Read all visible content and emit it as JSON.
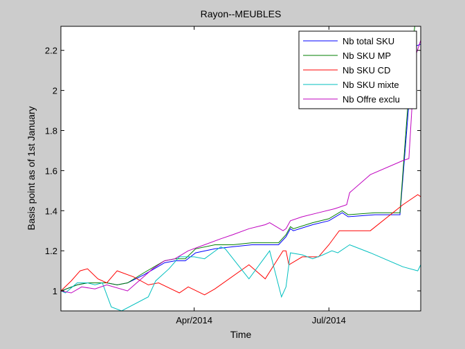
{
  "chart_data": {
    "type": "line",
    "title": "Rayon--MEUBLES",
    "xlabel": "Time",
    "ylabel": "Basis point as of 1st January",
    "xlim": [
      "2014-01-01",
      "2014-09-01"
    ],
    "ylim": [
      0.9,
      2.32
    ],
    "xticks": [
      {
        "date": "2014-04-01",
        "label": "Apr/2014"
      },
      {
        "date": "2014-07-01",
        "label": "Jul/2014"
      }
    ],
    "yticks": [
      {
        "value": 1.0,
        "label": "1"
      },
      {
        "value": 1.2,
        "label": "1.2"
      },
      {
        "value": 1.4,
        "label": "1.4"
      },
      {
        "value": 1.6,
        "label": "1.6"
      },
      {
        "value": 1.8,
        "label": "1.8"
      },
      {
        "value": 2.0,
        "label": "2"
      },
      {
        "value": 2.2,
        "label": "2.2"
      }
    ],
    "grid": false,
    "legend_position": "top-right",
    "series": [
      {
        "name": "Nb total SKU",
        "color": "#0000ff",
        "points": [
          [
            "2014-01-01",
            1.0
          ],
          [
            "2014-01-12",
            1.03
          ],
          [
            "2014-01-19",
            1.04
          ],
          [
            "2014-02-01",
            1.04
          ],
          [
            "2014-02-08",
            1.03
          ],
          [
            "2014-02-15",
            1.04
          ],
          [
            "2014-02-26",
            1.08
          ],
          [
            "2014-03-12",
            1.14
          ],
          [
            "2014-03-19",
            1.15
          ],
          [
            "2014-03-26",
            1.15
          ],
          [
            "2014-04-02",
            1.19
          ],
          [
            "2014-04-15",
            1.21
          ],
          [
            "2014-04-27",
            1.22
          ],
          [
            "2014-05-10",
            1.23
          ],
          [
            "2014-05-22",
            1.23
          ],
          [
            "2014-05-28",
            1.23
          ],
          [
            "2014-06-02",
            1.27
          ],
          [
            "2014-06-05",
            1.31
          ],
          [
            "2014-06-07",
            1.3
          ],
          [
            "2014-06-20",
            1.33
          ],
          [
            "2014-07-01",
            1.35
          ],
          [
            "2014-07-10",
            1.39
          ],
          [
            "2014-07-14",
            1.37
          ],
          [
            "2014-08-01",
            1.38
          ],
          [
            "2014-08-15",
            1.38
          ],
          [
            "2014-08-18",
            1.38
          ],
          [
            "2014-08-26",
            2.12
          ],
          [
            "2014-08-28",
            2.22
          ],
          [
            "2014-09-01",
            2.23
          ]
        ]
      },
      {
        "name": "Nb SKU MP",
        "color": "#007f00",
        "points": [
          [
            "2014-01-01",
            1.0
          ],
          [
            "2014-01-12",
            1.03
          ],
          [
            "2014-01-19",
            1.04
          ],
          [
            "2014-02-01",
            1.04
          ],
          [
            "2014-02-08",
            1.03
          ],
          [
            "2014-02-15",
            1.04
          ],
          [
            "2014-02-26",
            1.09
          ],
          [
            "2014-03-12",
            1.15
          ],
          [
            "2014-03-19",
            1.16
          ],
          [
            "2014-03-26",
            1.16
          ],
          [
            "2014-04-02",
            1.21
          ],
          [
            "2014-04-15",
            1.23
          ],
          [
            "2014-04-27",
            1.23
          ],
          [
            "2014-05-10",
            1.24
          ],
          [
            "2014-05-22",
            1.24
          ],
          [
            "2014-05-28",
            1.24
          ],
          [
            "2014-06-02",
            1.28
          ],
          [
            "2014-06-05",
            1.32
          ],
          [
            "2014-06-07",
            1.31
          ],
          [
            "2014-06-20",
            1.34
          ],
          [
            "2014-07-01",
            1.36
          ],
          [
            "2014-07-10",
            1.4
          ],
          [
            "2014-07-14",
            1.38
          ],
          [
            "2014-08-01",
            1.39
          ],
          [
            "2014-08-15",
            1.39
          ],
          [
            "2014-08-18",
            1.39
          ],
          [
            "2014-08-26",
            2.2
          ],
          [
            "2014-08-28",
            2.32
          ],
          [
            "2014-09-01",
            2.32
          ]
        ]
      },
      {
        "name": "Nb SKU CD",
        "color": "#ff0000",
        "points": [
          [
            "2014-01-01",
            1.0
          ],
          [
            "2014-01-08",
            1.05
          ],
          [
            "2014-01-14",
            1.1
          ],
          [
            "2014-01-19",
            1.11
          ],
          [
            "2014-01-26",
            1.06
          ],
          [
            "2014-02-01",
            1.04
          ],
          [
            "2014-02-08",
            1.1
          ],
          [
            "2014-02-19",
            1.07
          ],
          [
            "2014-02-29",
            1.03
          ],
          [
            "2014-03-08",
            1.04
          ],
          [
            "2014-03-22",
            0.99
          ],
          [
            "2014-03-28",
            1.02
          ],
          [
            "2014-04-08",
            0.98
          ],
          [
            "2014-04-15",
            1.01
          ],
          [
            "2014-05-08",
            1.13
          ],
          [
            "2014-05-19",
            1.06
          ],
          [
            "2014-05-31",
            1.2
          ],
          [
            "2014-06-02",
            1.2
          ],
          [
            "2014-06-04",
            1.13
          ],
          [
            "2014-06-13",
            1.17
          ],
          [
            "2014-06-24",
            1.17
          ],
          [
            "2014-07-01",
            1.23
          ],
          [
            "2014-07-08",
            1.3
          ],
          [
            "2014-07-22",
            1.3
          ],
          [
            "2014-07-29",
            1.3
          ],
          [
            "2014-08-20",
            1.43
          ],
          [
            "2014-08-30",
            1.48
          ],
          [
            "2014-09-01",
            1.47
          ]
        ]
      },
      {
        "name": "Nb SKU mixte",
        "color": "#00bfbf",
        "points": [
          [
            "2014-01-01",
            1.0
          ],
          [
            "2014-01-04",
            0.99
          ],
          [
            "2014-01-12",
            1.04
          ],
          [
            "2014-01-19",
            1.04
          ],
          [
            "2014-01-24",
            1.03
          ],
          [
            "2014-01-29",
            1.04
          ],
          [
            "2014-02-04",
            0.92
          ],
          [
            "2014-02-11",
            0.9
          ],
          [
            "2014-02-29",
            0.97
          ],
          [
            "2014-03-06",
            1.05
          ],
          [
            "2014-03-15",
            1.11
          ],
          [
            "2014-03-22",
            1.17
          ],
          [
            "2014-04-01",
            1.17
          ],
          [
            "2014-04-08",
            1.16
          ],
          [
            "2014-04-19",
            1.22
          ],
          [
            "2014-04-22",
            1.21
          ],
          [
            "2014-05-08",
            1.06
          ],
          [
            "2014-05-22",
            1.2
          ],
          [
            "2014-05-30",
            0.97
          ],
          [
            "2014-06-02",
            1.02
          ],
          [
            "2014-06-05",
            1.19
          ],
          [
            "2014-06-13",
            1.18
          ],
          [
            "2014-06-20",
            1.16
          ],
          [
            "2014-06-27",
            1.18
          ],
          [
            "2014-07-03",
            1.2
          ],
          [
            "2014-07-07",
            1.19
          ],
          [
            "2014-07-15",
            1.23
          ],
          [
            "2014-07-29",
            1.19
          ],
          [
            "2014-08-20",
            1.12
          ],
          [
            "2014-08-30",
            1.1
          ],
          [
            "2014-09-01",
            1.13
          ]
        ]
      },
      {
        "name": "Nb Offre exclu",
        "color": "#bf00bf",
        "points": [
          [
            "2014-01-01",
            1.0
          ],
          [
            "2014-01-08",
            0.99
          ],
          [
            "2014-01-15",
            1.02
          ],
          [
            "2014-01-24",
            1.01
          ],
          [
            "2014-02-01",
            1.03
          ],
          [
            "2014-02-15",
            1.0
          ],
          [
            "2014-03-04",
            1.11
          ],
          [
            "2014-03-12",
            1.15
          ],
          [
            "2014-03-19",
            1.16
          ],
          [
            "2014-03-28",
            1.2
          ],
          [
            "2014-04-08",
            1.23
          ],
          [
            "2014-04-19",
            1.26
          ],
          [
            "2014-04-27",
            1.28
          ],
          [
            "2014-05-08",
            1.31
          ],
          [
            "2014-05-19",
            1.33
          ],
          [
            "2014-05-22",
            1.34
          ],
          [
            "2014-05-31",
            1.3
          ],
          [
            "2014-06-02",
            1.31
          ],
          [
            "2014-06-05",
            1.35
          ],
          [
            "2014-06-13",
            1.37
          ],
          [
            "2014-06-24",
            1.39
          ],
          [
            "2014-07-05",
            1.41
          ],
          [
            "2014-07-13",
            1.43
          ],
          [
            "2014-07-15",
            1.49
          ],
          [
            "2014-07-29",
            1.58
          ],
          [
            "2014-08-20",
            1.65
          ],
          [
            "2014-08-24",
            1.66
          ],
          [
            "2014-08-26",
            1.91
          ],
          [
            "2014-08-28",
            2.16
          ],
          [
            "2014-09-01",
            2.25
          ]
        ]
      }
    ]
  }
}
